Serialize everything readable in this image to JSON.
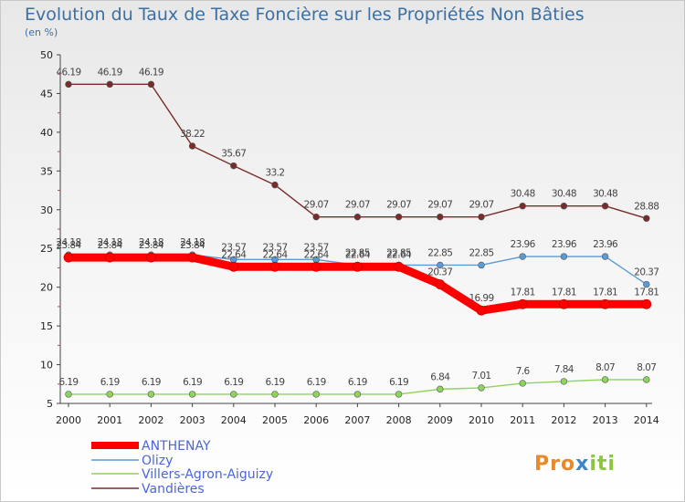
{
  "chart_data": {
    "type": "line",
    "title": "Evolution du Taux de Taxe Foncière sur les Propriétés Non Bâties",
    "subtitle": "(en %)",
    "x": [
      "2000",
      "2001",
      "2002",
      "2003",
      "2004",
      "2005",
      "2006",
      "2007",
      "2008",
      "2009",
      "2010",
      "2011",
      "2012",
      "2013",
      "2014"
    ],
    "ylim": [
      5,
      50
    ],
    "yticks": [
      "5",
      "10",
      "15",
      "20",
      "25",
      "30",
      "35",
      "40",
      "45",
      "50"
    ],
    "grid": false,
    "legend_position": "bottom-left",
    "series": [
      {
        "name": "ANTHENAY",
        "color": "#ff0000",
        "values": [
          23.84,
          23.84,
          23.84,
          23.84,
          22.64,
          22.64,
          22.64,
          22.64,
          22.64,
          20.37,
          16.99,
          17.81,
          17.81,
          17.81,
          17.81
        ],
        "labels": [
          "23.84",
          "23.84",
          "23.84",
          "23.84",
          "22.64",
          "22.64",
          "22.64",
          "22.64",
          "22.64",
          "20.37",
          "16.99",
          "17.81",
          "17.81",
          "17.81",
          "17.81"
        ]
      },
      {
        "name": "Olizy",
        "color": "#5b9bd5",
        "values": [
          24.18,
          24.18,
          24.18,
          24.18,
          23.57,
          23.57,
          23.57,
          22.85,
          22.85,
          22.85,
          22.85,
          23.96,
          23.96,
          23.96,
          20.37
        ],
        "labels": [
          "24.18",
          "24.18",
          "24.18",
          "24.18",
          "23.57",
          "23.57",
          "23.57",
          "22.85",
          "22.85",
          "22.85",
          "22.85",
          "23.96",
          "23.96",
          "23.96",
          "20.37"
        ]
      },
      {
        "name": "Villers-Agron-Aiguizy",
        "color": "#8fd45a",
        "values": [
          6.19,
          6.19,
          6.19,
          6.19,
          6.19,
          6.19,
          6.19,
          6.19,
          6.19,
          6.84,
          7.01,
          7.6,
          7.84,
          8.07,
          8.07
        ],
        "labels": [
          "6.19",
          "6.19",
          "6.19",
          "6.19",
          "6.19",
          "6.19",
          "6.19",
          "6.19",
          "6.19",
          "6.84",
          "7.01",
          "7.6",
          "7.84",
          "8.07",
          "8.07"
        ]
      },
      {
        "name": "Vandières",
        "color": "#7a2b2b",
        "values": [
          46.19,
          46.19,
          46.19,
          38.22,
          35.67,
          33.2,
          29.07,
          29.07,
          29.07,
          29.07,
          29.07,
          30.48,
          30.48,
          30.48,
          28.88
        ],
        "labels": [
          "46.19",
          "46.19",
          "46.19",
          "38.22",
          "35.67",
          "33.2",
          "29.07",
          "29.07",
          "29.07",
          "29.07",
          "29.07",
          "30.48",
          "30.48",
          "30.48",
          "28.88"
        ]
      }
    ]
  },
  "logo": {
    "text": "Proxiti",
    "colors": [
      "#e8892a",
      "#3a86c8",
      "#8cc63f"
    ]
  }
}
